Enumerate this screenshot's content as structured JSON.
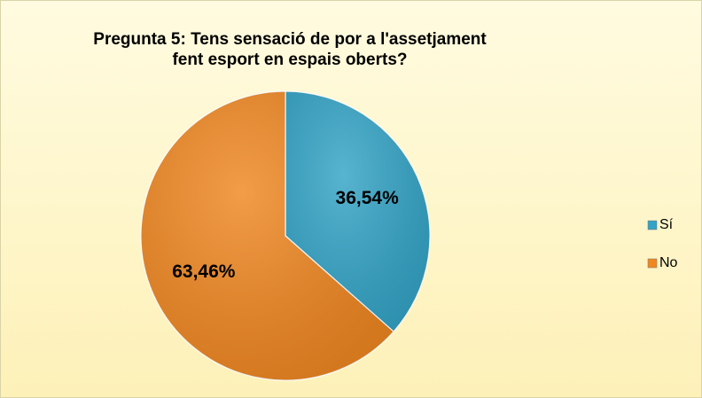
{
  "chart_data": {
    "type": "pie",
    "title": "Pregunta 5: Tens sensació de por a l'assetjament fent esport en espais oberts?",
    "categories": [
      "Sí",
      "No"
    ],
    "values": [
      36.54,
      63.46
    ],
    "value_labels": [
      "36,54%",
      "63,46%"
    ],
    "colors": [
      "#33a4c6",
      "#f08721"
    ],
    "legend": "right"
  }
}
